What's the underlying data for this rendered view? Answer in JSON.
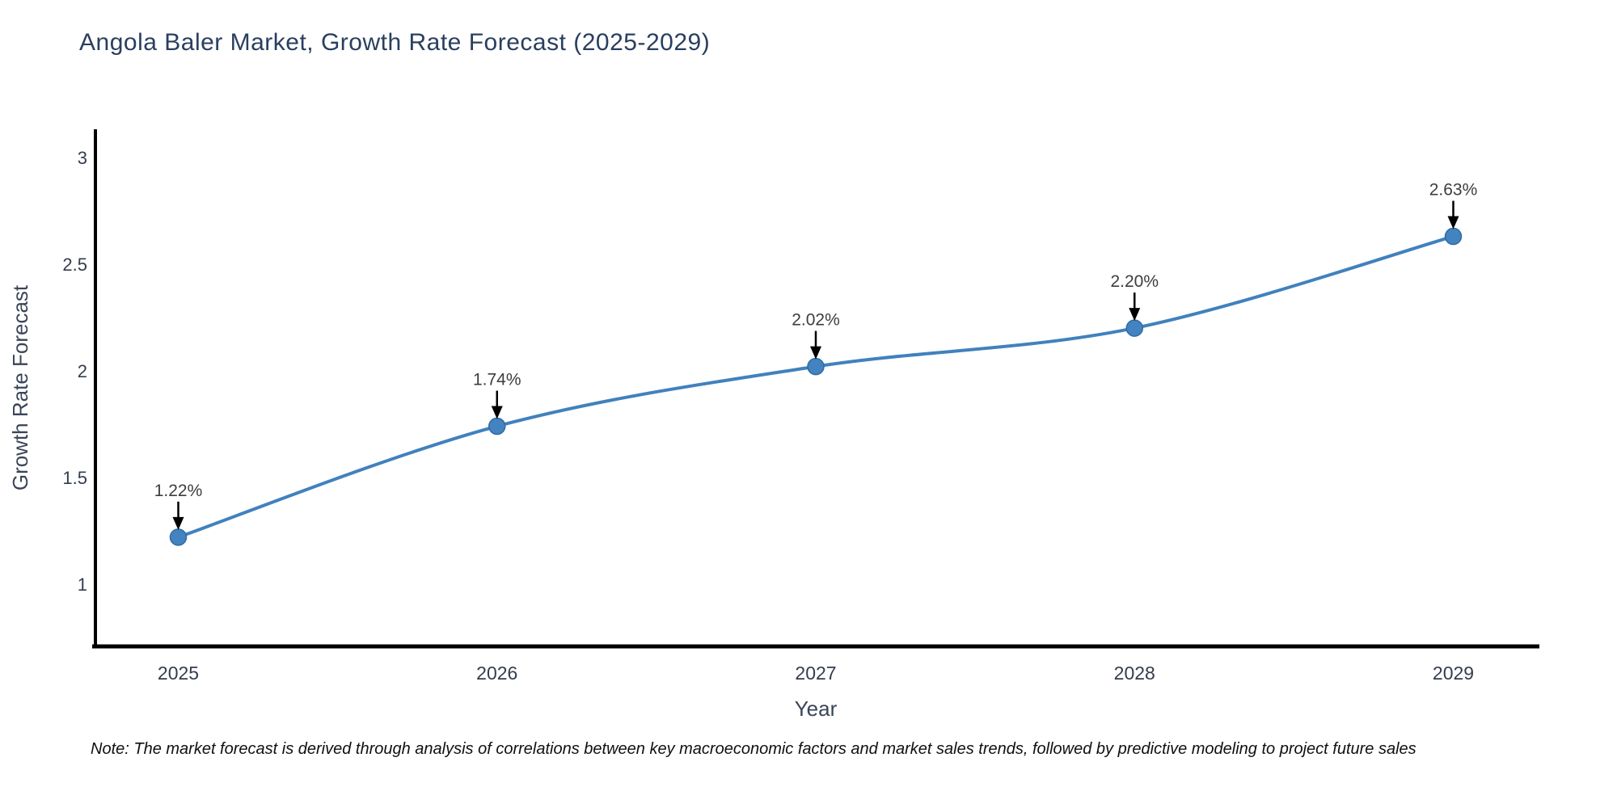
{
  "chart_data": {
    "type": "line",
    "title": "Angola Baler Market, Growth Rate Forecast (2025-2029)",
    "x": [
      2025,
      2026,
      2027,
      2028,
      2029
    ],
    "values": [
      1.22,
      1.74,
      2.02,
      2.2,
      2.63
    ],
    "labels": [
      "1.22%",
      "1.74%",
      "2.02%",
      "2.20%",
      "2.63%"
    ],
    "xlabel": "Year",
    "ylabel": "Growth Rate Forecast",
    "xticks": [
      2025,
      2026,
      2027,
      2028,
      2029
    ],
    "xtick_labels": [
      "2025",
      "2026",
      "2027",
      "2028",
      "2029"
    ],
    "yticks": [
      1,
      1.5,
      2,
      2.5,
      3
    ],
    "ytick_labels": [
      "1",
      "1.5",
      "2",
      "2.5",
      "3"
    ],
    "xlim": [
      2024.74,
      2029.26
    ],
    "ylim": [
      0.708,
      3.132
    ],
    "grid": false,
    "legend": "none",
    "line_color": "#4181bd",
    "marker_color": "#4383c0",
    "marker_edge_color": "#2f6ba3",
    "annotation_color": "#000000",
    "axis_color": "#000000",
    "title_color": "#2a3f5f",
    "note": "Note: The market forecast is derived through analysis of correlations between key macroeconomic factors and market sales trends, followed by predictive modeling to project future sales"
  }
}
